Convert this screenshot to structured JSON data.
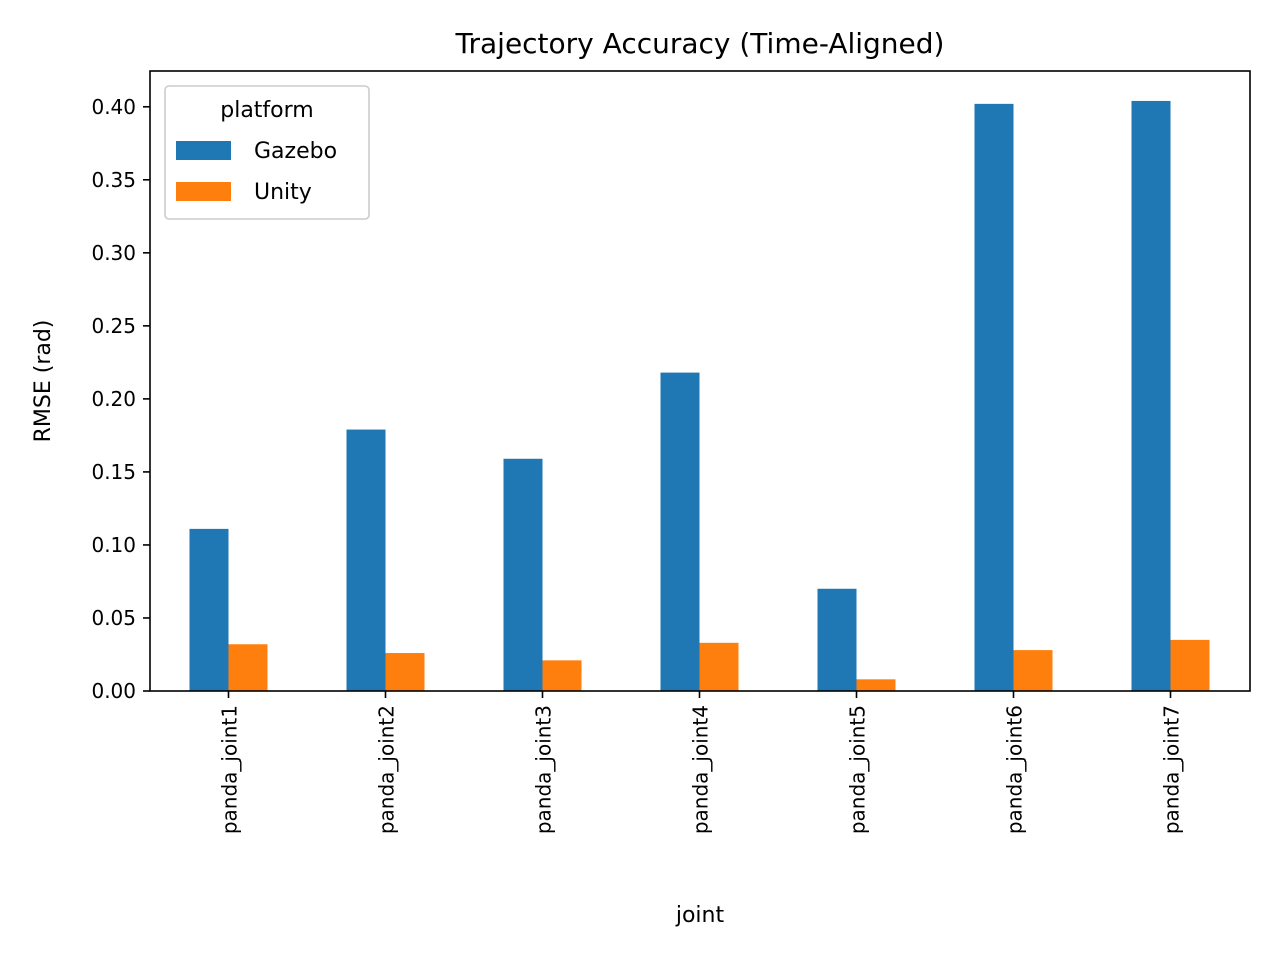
{
  "chart_data": {
    "type": "bar",
    "title": "Trajectory Accuracy (Time-Aligned)",
    "xlabel": "joint",
    "ylabel": "RMSE (rad)",
    "categories": [
      "panda_joint1",
      "panda_joint2",
      "panda_joint3",
      "panda_joint4",
      "panda_joint5",
      "panda_joint6",
      "panda_joint7"
    ],
    "series": [
      {
        "name": "Gazebo",
        "color": "#1f77b4",
        "values": [
          0.111,
          0.179,
          0.159,
          0.218,
          0.07,
          0.402,
          0.404
        ]
      },
      {
        "name": "Unity",
        "color": "#ff7f0e",
        "values": [
          0.032,
          0.026,
          0.021,
          0.033,
          0.008,
          0.028,
          0.035
        ]
      }
    ],
    "ylim": [
      0,
      0.4245
    ],
    "yticks": [
      0.0,
      0.05,
      0.1,
      0.15,
      0.2,
      0.25,
      0.3,
      0.35,
      0.4
    ],
    "ytick_labels": [
      "0.00",
      "0.05",
      "0.10",
      "0.15",
      "0.20",
      "0.25",
      "0.30",
      "0.35",
      "0.40"
    ],
    "grid": false,
    "legend": {
      "title": "platform",
      "placement": "top-left"
    }
  }
}
